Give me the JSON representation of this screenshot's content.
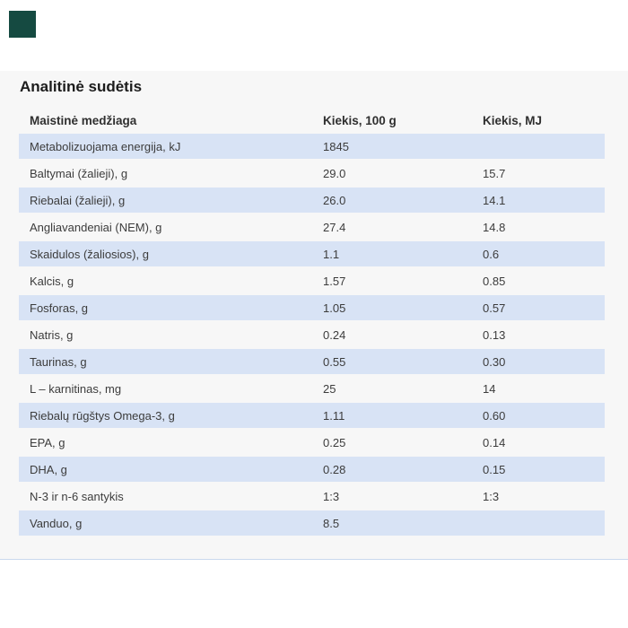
{
  "logo": {
    "color": "#154a41"
  },
  "section": {
    "title": "Analitinė sudėtis"
  },
  "table": {
    "columns": [
      "Maistinė medžiaga",
      "Kiekis, 100 g",
      "Kiekis, MJ"
    ],
    "rows": [
      {
        "nutrient": "Metabolizuojama energija, kJ",
        "per_100g": "1845",
        "per_mj": ""
      },
      {
        "nutrient": "Baltymai (žalieji), g",
        "per_100g": "29.0",
        "per_mj": "15.7"
      },
      {
        "nutrient": "Riebalai (žalieji), g",
        "per_100g": "26.0",
        "per_mj": "14.1"
      },
      {
        "nutrient": "Angliavandeniai (NEM), g",
        "per_100g": "27.4",
        "per_mj": "14.8"
      },
      {
        "nutrient": "Skaidulos (žaliosios), g",
        "per_100g": "1.1",
        "per_mj": "0.6"
      },
      {
        "nutrient": "Kalcis, g",
        "per_100g": "1.57",
        "per_mj": "0.85"
      },
      {
        "nutrient": "Fosforas, g",
        "per_100g": "1.05",
        "per_mj": "0.57"
      },
      {
        "nutrient": "Natris, g",
        "per_100g": "0.24",
        "per_mj": "0.13"
      },
      {
        "nutrient": "Taurinas, g",
        "per_100g": "0.55",
        "per_mj": "0.30"
      },
      {
        "nutrient": "L – karnitinas, mg",
        "per_100g": "25",
        "per_mj": "14"
      },
      {
        "nutrient": "Riebalų rūgštys Omega-3, g",
        "per_100g": "1.11",
        "per_mj": "0.60"
      },
      {
        "nutrient": "EPA, g",
        "per_100g": "0.25",
        "per_mj": "0.14"
      },
      {
        "nutrient": "DHA, g",
        "per_100g": "0.28",
        "per_mj": "0.15"
      },
      {
        "nutrient": "N-3 ir n-6 santykis",
        "per_100g": "1:3",
        "per_mj": "1:3"
      },
      {
        "nutrient": "Vanduo, g",
        "per_100g": "8.5",
        "per_mj": ""
      }
    ]
  },
  "colors": {
    "accent_row": "#d8e3f5",
    "panel_bg": "#f7f7f7",
    "panel_border_bottom": "#c9d9ee",
    "logo": "#154a41",
    "title_text": "#1c1c1c",
    "body_text": "#3c3c3c"
  }
}
